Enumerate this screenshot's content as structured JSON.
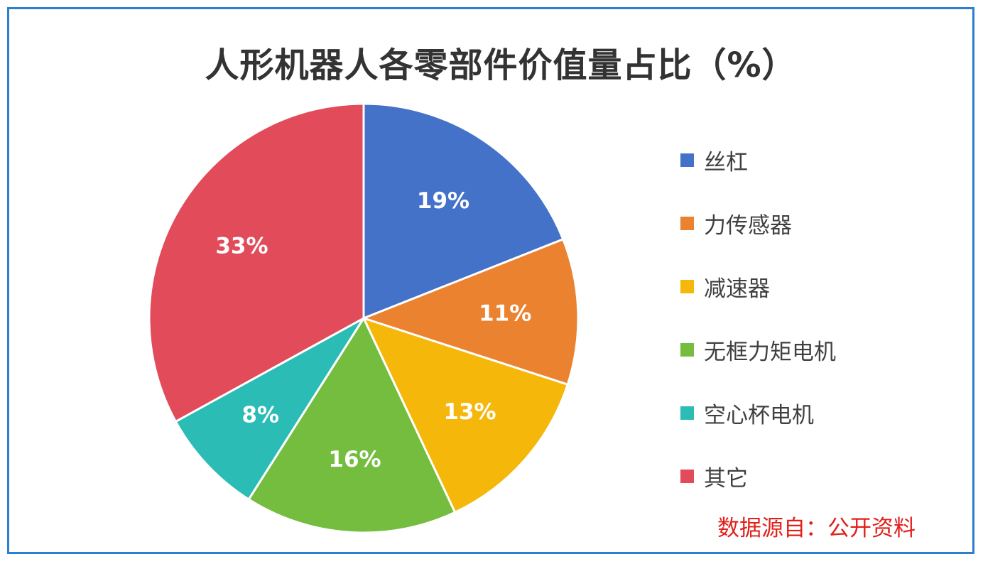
{
  "chart_data": {
    "type": "pie",
    "title": "人形机器人各零部件价值量占比（%）",
    "categories": [
      "丝杠",
      "力传感器",
      "减速器",
      "无框力矩电机",
      "空心杯电机",
      "其它"
    ],
    "values": [
      19,
      11,
      13,
      16,
      8,
      33
    ],
    "value_labels": [
      "19%",
      "11%",
      "13%",
      "16%",
      "8%",
      "33%"
    ],
    "colors": [
      "#4472c8",
      "#ea8230",
      "#f4b70a",
      "#74bd3f",
      "#2abcb5",
      "#e14b5a"
    ],
    "start_angle": "12 o'clock",
    "direction": "clockwise",
    "legend_position": "right"
  },
  "legend": {
    "items": [
      {
        "label": "丝杠",
        "color": "#4472c8"
      },
      {
        "label": "力传感器",
        "color": "#ea8230"
      },
      {
        "label": "减速器",
        "color": "#f4b70a"
      },
      {
        "label": "无框力矩电机",
        "color": "#74bd3f"
      },
      {
        "label": "空心杯电机",
        "color": "#2abcb5"
      },
      {
        "label": "其它",
        "color": "#e14b5a"
      }
    ]
  },
  "source_note": "数据源自：公开资料"
}
